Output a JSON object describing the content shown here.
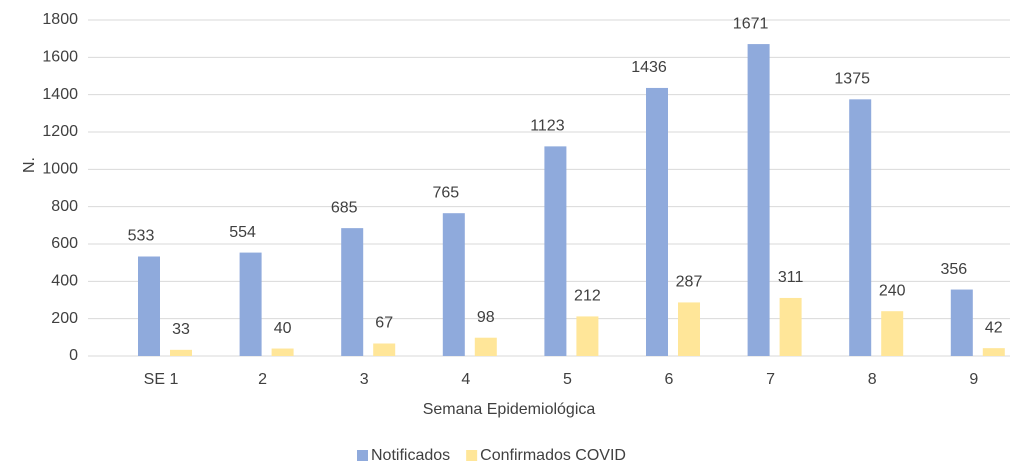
{
  "chart_data": {
    "type": "bar",
    "x_label": "Semana Epidemiológica",
    "y_label": "N.",
    "categories": [
      "SE 1",
      "2",
      "3",
      "4",
      "5",
      "6",
      "7",
      "8",
      "9"
    ],
    "series": [
      {
        "name": "Notificados",
        "color": "#8faadc",
        "values": [
          533,
          554,
          685,
          765,
          1123,
          1436,
          1671,
          1375,
          356
        ]
      },
      {
        "name": "Confirmados COVID",
        "color": "#ffe699",
        "values": [
          33,
          40,
          67,
          98,
          212,
          287,
          311,
          240,
          42
        ]
      }
    ],
    "ylim": [
      0,
      1800
    ],
    "yticks": [
      0,
      200,
      400,
      600,
      800,
      1000,
      1200,
      1400,
      1600,
      1800
    ],
    "grid": true,
    "legend": "bottom"
  }
}
